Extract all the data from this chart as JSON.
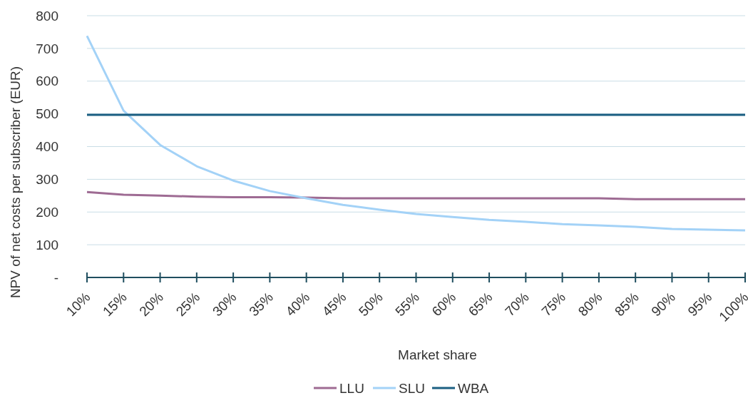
{
  "chart_data": {
    "type": "line",
    "xlabel": "Market share",
    "ylabel": "NPV of net costs per subscriber (EUR)",
    "categories": [
      "10%",
      "15%",
      "20%",
      "25%",
      "30%",
      "35%",
      "40%",
      "45%",
      "50%",
      "55%",
      "60%",
      "65%",
      "70%",
      "75%",
      "80%",
      "85%",
      "90%",
      "95%",
      "100%"
    ],
    "series": [
      {
        "name": "LLU",
        "color": "#9e6b93",
        "values": [
          261,
          253,
          250,
          247,
          245,
          245,
          244,
          242,
          242,
          242,
          242,
          242,
          242,
          242,
          242,
          239,
          239,
          239,
          239
        ]
      },
      {
        "name": "SLU",
        "color": "#a3d2f7",
        "values": [
          738,
          510,
          405,
          340,
          296,
          264,
          242,
          222,
          207,
          194,
          185,
          176,
          170,
          163,
          159,
          155,
          148,
          146,
          144
        ]
      },
      {
        "name": "WBA",
        "color": "#1b5f82",
        "values": [
          497,
          497,
          497,
          497,
          497,
          497,
          497,
          497,
          497,
          497,
          497,
          497,
          497,
          497,
          497,
          497,
          497,
          497,
          497
        ]
      }
    ],
    "ylim": [
      0,
      800
    ],
    "yticks": [
      {
        "value": 0,
        "label": "-"
      },
      100,
      200,
      300,
      400,
      500,
      600,
      700,
      800
    ],
    "grid": "y",
    "legend": "bottom",
    "marker": "none",
    "line_style": "solid"
  }
}
